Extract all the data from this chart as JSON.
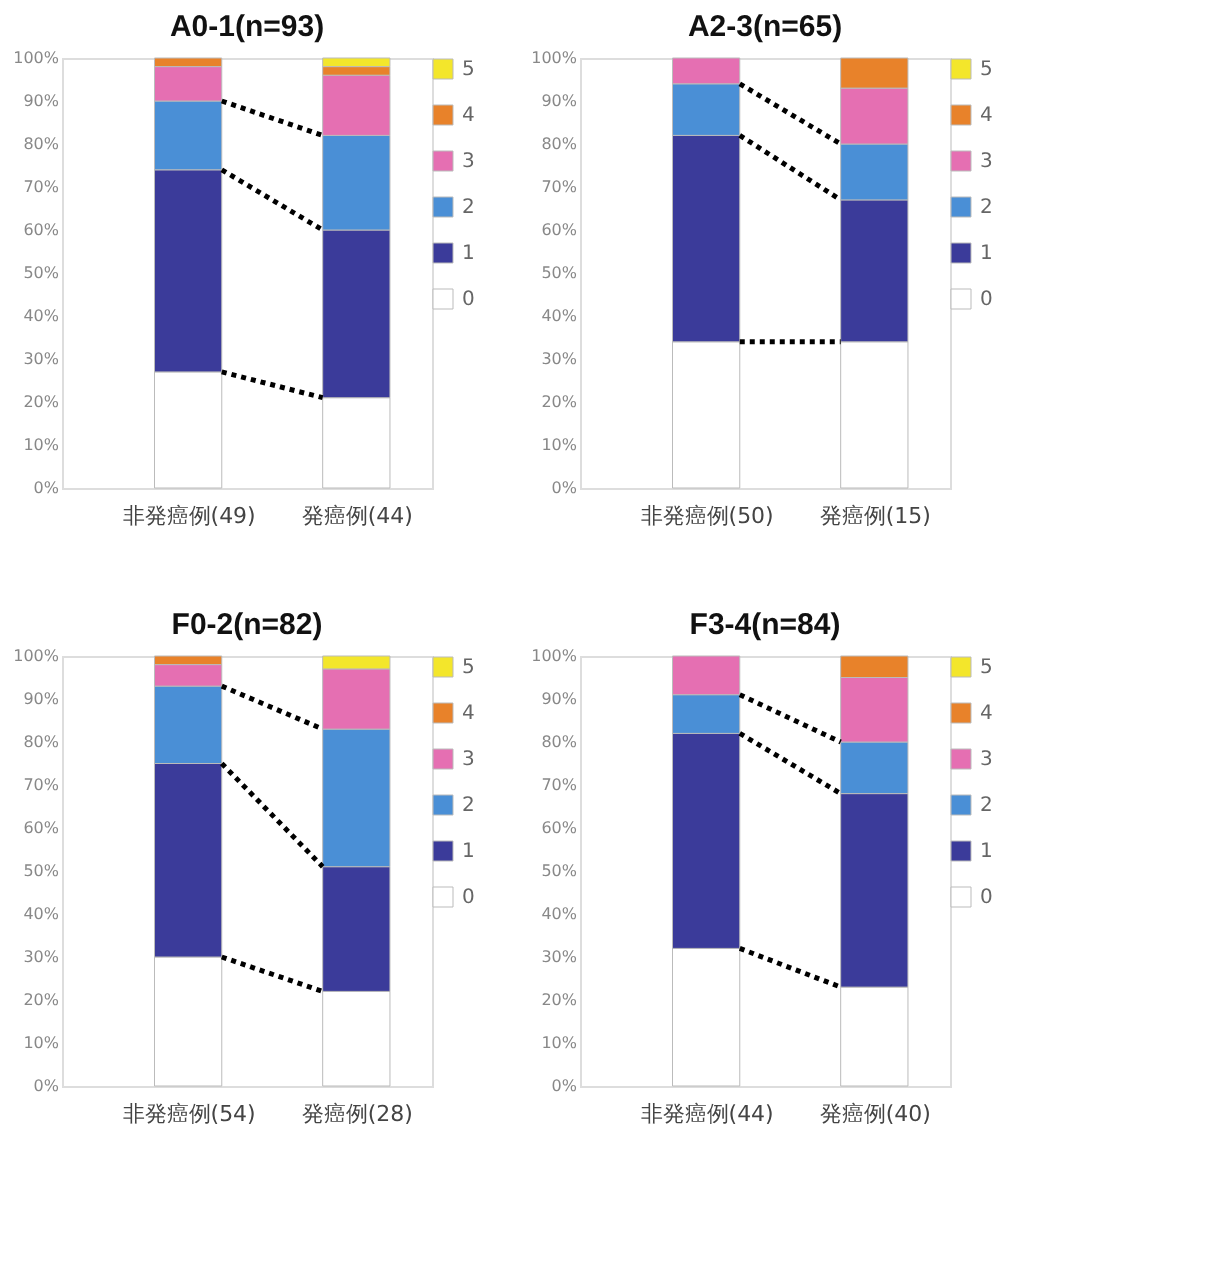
{
  "chart_data": [
    {
      "type": "bar",
      "stacked": true,
      "title": "A0-1(n=93)",
      "categories": [
        "非発癌例(49)",
        "発癌例(44)"
      ],
      "ylim": [
        0,
        100
      ],
      "yticks": [
        {
          "value": 0,
          "label": "0%"
        },
        {
          "value": 10,
          "label": "10%"
        },
        {
          "value": 20,
          "label": "20%"
        },
        {
          "value": 30,
          "label": "30%"
        },
        {
          "value": 40,
          "label": "40%"
        },
        {
          "value": 50,
          "label": "50%"
        },
        {
          "value": 60,
          "label": "60%"
        },
        {
          "value": 70,
          "label": "70%"
        },
        {
          "value": 80,
          "label": "80%"
        },
        {
          "value": 90,
          "label": "90%"
        },
        {
          "value": 100,
          "label": "100%"
        }
      ],
      "grid": false,
      "legend": "right",
      "series": [
        {
          "name": "0",
          "color": "#ffffff",
          "values": [
            27,
            21
          ]
        },
        {
          "name": "1",
          "color": "#3b3b9a",
          "values": [
            47,
            39
          ]
        },
        {
          "name": "2",
          "color": "#4a8fd6",
          "values": [
            16,
            22
          ]
        },
        {
          "name": "3",
          "color": "#e56fb2",
          "values": [
            8,
            14
          ]
        },
        {
          "name": "4",
          "color": "#e8822a",
          "values": [
            2,
            2
          ]
        },
        {
          "name": "5",
          "color": "#f3e62b",
          "values": [
            0,
            2
          ]
        }
      ]
    },
    {
      "type": "bar",
      "stacked": true,
      "title": "A2-3(n=65)",
      "categories": [
        "非発癌例(50)",
        "発癌例(15)"
      ],
      "ylim": [
        0,
        100
      ],
      "yticks": [
        {
          "value": 0,
          "label": "0%"
        },
        {
          "value": 10,
          "label": "10%"
        },
        {
          "value": 20,
          "label": "20%"
        },
        {
          "value": 30,
          "label": "30%"
        },
        {
          "value": 40,
          "label": "40%"
        },
        {
          "value": 50,
          "label": "50%"
        },
        {
          "value": 60,
          "label": "60%"
        },
        {
          "value": 70,
          "label": "70%"
        },
        {
          "value": 80,
          "label": "80%"
        },
        {
          "value": 90,
          "label": "90%"
        },
        {
          "value": 100,
          "label": "100%"
        }
      ],
      "grid": false,
      "legend": "right",
      "series": [
        {
          "name": "0",
          "color": "#ffffff",
          "values": [
            34,
            34
          ]
        },
        {
          "name": "1",
          "color": "#3b3b9a",
          "values": [
            48,
            33
          ]
        },
        {
          "name": "2",
          "color": "#4a8fd6",
          "values": [
            12,
            13
          ]
        },
        {
          "name": "3",
          "color": "#e56fb2",
          "values": [
            6,
            13
          ]
        },
        {
          "name": "4",
          "color": "#e8822a",
          "values": [
            0,
            7
          ]
        },
        {
          "name": "5",
          "color": "#f3e62b",
          "values": [
            0,
            0
          ]
        }
      ]
    },
    {
      "type": "bar",
      "stacked": true,
      "title": "F0-2(n=82)",
      "categories": [
        "非発癌例(54)",
        "発癌例(28)"
      ],
      "ylim": [
        0,
        100
      ],
      "yticks": [
        {
          "value": 0,
          "label": "0%"
        },
        {
          "value": 10,
          "label": "10%"
        },
        {
          "value": 20,
          "label": "20%"
        },
        {
          "value": 30,
          "label": "30%"
        },
        {
          "value": 40,
          "label": "40%"
        },
        {
          "value": 50,
          "label": "50%"
        },
        {
          "value": 60,
          "label": "60%"
        },
        {
          "value": 70,
          "label": "70%"
        },
        {
          "value": 80,
          "label": "80%"
        },
        {
          "value": 90,
          "label": "90%"
        },
        {
          "value": 100,
          "label": "100%"
        }
      ],
      "grid": false,
      "legend": "right",
      "series": [
        {
          "name": "0",
          "color": "#ffffff",
          "values": [
            30,
            22
          ]
        },
        {
          "name": "1",
          "color": "#3b3b9a",
          "values": [
            45,
            29
          ]
        },
        {
          "name": "2",
          "color": "#4a8fd6",
          "values": [
            18,
            32
          ]
        },
        {
          "name": "3",
          "color": "#e56fb2",
          "values": [
            5,
            14
          ]
        },
        {
          "name": "4",
          "color": "#e8822a",
          "values": [
            2,
            0
          ]
        },
        {
          "name": "5",
          "color": "#f3e62b",
          "values": [
            0,
            3
          ]
        }
      ]
    },
    {
      "type": "bar",
      "stacked": true,
      "title": "F3-4(n=84)",
      "categories": [
        "非発癌例(44)",
        "発癌例(40)"
      ],
      "ylim": [
        0,
        100
      ],
      "yticks": [
        {
          "value": 0,
          "label": "0%"
        },
        {
          "value": 10,
          "label": "10%"
        },
        {
          "value": 20,
          "label": "20%"
        },
        {
          "value": 30,
          "label": "30%"
        },
        {
          "value": 40,
          "label": "40%"
        },
        {
          "value": 50,
          "label": "50%"
        },
        {
          "value": 60,
          "label": "60%"
        },
        {
          "value": 70,
          "label": "70%"
        },
        {
          "value": 80,
          "label": "80%"
        },
        {
          "value": 90,
          "label": "90%"
        },
        {
          "value": 100,
          "label": "100%"
        }
      ],
      "grid": false,
      "legend": "right",
      "series": [
        {
          "name": "0",
          "color": "#ffffff",
          "values": [
            32,
            23
          ]
        },
        {
          "name": "1",
          "color": "#3b3b9a",
          "values": [
            50,
            45
          ]
        },
        {
          "name": "2",
          "color": "#4a8fd6",
          "values": [
            9,
            12
          ]
        },
        {
          "name": "3",
          "color": "#e56fb2",
          "values": [
            9,
            15
          ]
        },
        {
          "name": "4",
          "color": "#e8822a",
          "values": [
            0,
            5
          ]
        },
        {
          "name": "5",
          "color": "#f3e62b",
          "values": [
            0,
            0
          ]
        }
      ]
    }
  ]
}
